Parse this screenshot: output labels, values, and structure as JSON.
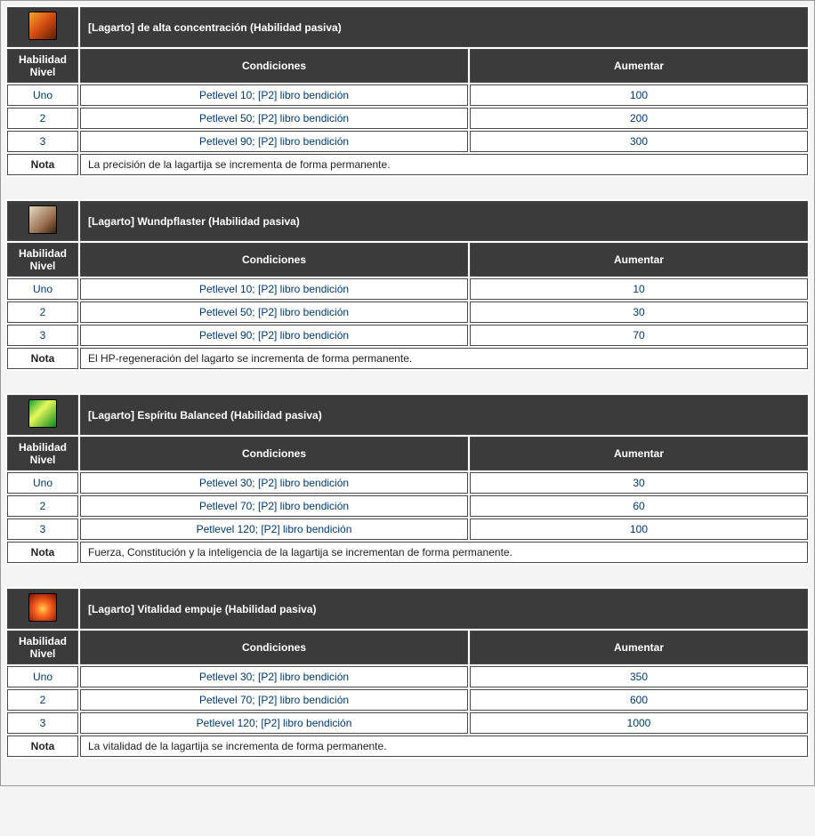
{
  "headers": {
    "level": "Habilidad Nivel",
    "conditions": "Condiciones",
    "increase": "Aumentar",
    "note": "Nota"
  },
  "skills": [
    {
      "title": "[Lagarto] de alta concentración (Habilidad pasiva)",
      "icon_gradient": "linear-gradient(135deg, #f7a334 0%, #d14b0e 50%, #5a1e05 100%)",
      "rows": [
        {
          "level": "Uno",
          "cond": "Petlevel 10; [P2] libro bendición",
          "aum": "100"
        },
        {
          "level": "2",
          "cond": "Petlevel 50; [P2] libro bendición",
          "aum": "200"
        },
        {
          "level": "3",
          "cond": "Petlevel 90; [P2] libro bendición",
          "aum": "300"
        }
      ],
      "note": "La precisión de la lagartija se incrementa de forma permanente."
    },
    {
      "title": "[Lagarto] Wundpflaster (Habilidad pasiva)",
      "icon_gradient": "linear-gradient(135deg, #e8d9c5 0%, #9b7250 60%, #3a220e 100%)",
      "rows": [
        {
          "level": "Uno",
          "cond": "Petlevel 10; [P2] libro bendición",
          "aum": "10"
        },
        {
          "level": "2",
          "cond": "Petlevel 50; [P2] libro bendición",
          "aum": "30"
        },
        {
          "level": "3",
          "cond": "Petlevel 90; [P2] libro bendición",
          "aum": "70"
        }
      ],
      "note": "El HP-regeneración del lagarto se incrementa de forma permanente."
    },
    {
      "title": "[Lagarto] Espíritu Balanced (Habilidad pasiva)",
      "icon_gradient": "linear-gradient(135deg, #0fa32b 0%, #e7f75c 40%, #07891f 100%)",
      "rows": [
        {
          "level": "Uno",
          "cond": "Petlevel 30; [P2] libro bendición",
          "aum": "30"
        },
        {
          "level": "2",
          "cond": "Petlevel 70; [P2] libro bendición",
          "aum": "60"
        },
        {
          "level": "3",
          "cond": "Petlevel 120; [P2] libro bendición",
          "aum": "100"
        }
      ],
      "note": "Fuerza, Constitución y la inteligencia de la lagartija se incrementan de forma permanente."
    },
    {
      "title": "[Lagarto] Vitalidad empuje (Habilidad pasiva)",
      "icon_gradient": "radial-gradient(circle at 50% 55%, #ffcf5a 0%, #ff6a1f 35%, #7a0c02 100%)",
      "rows": [
        {
          "level": "Uno",
          "cond": "Petlevel 30; [P2] libro bendición",
          "aum": "350"
        },
        {
          "level": "2",
          "cond": "Petlevel 70; [P2] libro bendición",
          "aum": "600"
        },
        {
          "level": "3",
          "cond": "Petlevel 120; [P2] libro bendición",
          "aum": "1000"
        }
      ],
      "note": "La vitalidad de la lagartija se incrementa de forma permanente."
    }
  ]
}
